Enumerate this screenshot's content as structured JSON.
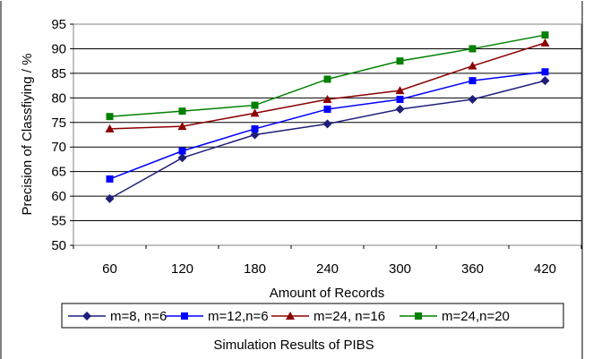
{
  "chart_data": {
    "type": "line",
    "title": "",
    "xlabel": "Amount of Records",
    "ylabel": "Precision of Classfiying / %",
    "categories": [
      "60",
      "120",
      "180",
      "240",
      "300",
      "360",
      "420"
    ],
    "ylim": [
      50,
      95
    ],
    "yticks": [
      "50",
      "55",
      "60",
      "65",
      "70",
      "75",
      "80",
      "85",
      "90",
      "95"
    ],
    "grid": "horizontal",
    "legend_position": "bottom",
    "series": [
      {
        "name": "m=8, n=6",
        "marker": "diamond",
        "color": "#1f1f7a",
        "values": [
          59.5,
          67.8,
          72.5,
          74.7,
          77.7,
          79.7,
          83.5
        ]
      },
      {
        "name": "m=12,n=6",
        "marker": "square",
        "color": "#0000ff",
        "values": [
          63.5,
          69.2,
          73.7,
          77.7,
          79.7,
          83.5,
          85.3
        ]
      },
      {
        "name": "m=24, n=16",
        "marker": "triangle",
        "color": "#8b0000",
        "values": [
          73.7,
          74.2,
          76.9,
          79.7,
          81.5,
          86.5,
          91.2
        ]
      },
      {
        "name": "m=24,n=20",
        "marker": "square",
        "color": "#008000",
        "values": [
          76.2,
          77.3,
          78.5,
          83.8,
          87.5,
          90.0,
          92.8
        ]
      }
    ]
  },
  "caption": "Simulation Results of PIBS"
}
